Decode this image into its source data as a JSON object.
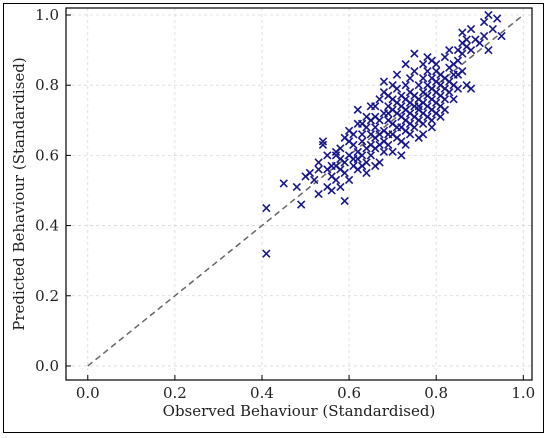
{
  "chart_data": {
    "type": "scatter",
    "title": "",
    "xlabel": "Observed Behaviour (Standardised)",
    "ylabel": "Predicted Behaviour (Standardised)",
    "xlim": [
      -0.05,
      1.02
    ],
    "ylim": [
      -0.04,
      1.02
    ],
    "xticks": [
      "0.0",
      "0.2",
      "0.4",
      "0.6",
      "0.8",
      "1.0"
    ],
    "yticks": [
      "0.0",
      "0.2",
      "0.4",
      "0.6",
      "0.8",
      "1.0"
    ],
    "xtick_values": [
      0.0,
      0.2,
      0.4,
      0.6,
      0.8,
      1.0
    ],
    "ytick_values": [
      0.0,
      0.2,
      0.4,
      0.6,
      0.8,
      1.0
    ],
    "grid": true,
    "marker": "x",
    "marker_color": "#17178a",
    "reference_line": {
      "x": [
        0,
        1
      ],
      "y": [
        0,
        1
      ],
      "style": "dashed",
      "color": "#666666"
    },
    "points": [
      [
        0.41,
        0.32
      ],
      [
        0.41,
        0.45
      ],
      [
        0.45,
        0.52
      ],
      [
        0.48,
        0.51
      ],
      [
        0.49,
        0.46
      ],
      [
        0.5,
        0.54
      ],
      [
        0.52,
        0.53
      ],
      [
        0.53,
        0.49
      ],
      [
        0.53,
        0.56
      ],
      [
        0.54,
        0.63
      ],
      [
        0.54,
        0.64
      ],
      [
        0.55,
        0.51
      ],
      [
        0.55,
        0.56
      ],
      [
        0.56,
        0.57
      ],
      [
        0.56,
        0.5
      ],
      [
        0.57,
        0.53
      ],
      [
        0.57,
        0.6
      ],
      [
        0.57,
        0.61
      ],
      [
        0.58,
        0.56
      ],
      [
        0.58,
        0.51
      ],
      [
        0.58,
        0.62
      ],
      [
        0.59,
        0.58
      ],
      [
        0.59,
        0.47
      ],
      [
        0.59,
        0.55
      ],
      [
        0.6,
        0.6
      ],
      [
        0.6,
        0.64
      ],
      [
        0.6,
        0.53
      ],
      [
        0.61,
        0.59
      ],
      [
        0.61,
        0.66
      ],
      [
        0.61,
        0.57
      ],
      [
        0.62,
        0.61
      ],
      [
        0.62,
        0.56
      ],
      [
        0.62,
        0.69
      ],
      [
        0.62,
        0.73
      ],
      [
        0.63,
        0.6
      ],
      [
        0.63,
        0.64
      ],
      [
        0.63,
        0.57
      ],
      [
        0.63,
        0.66
      ],
      [
        0.64,
        0.62
      ],
      [
        0.64,
        0.68
      ],
      [
        0.64,
        0.58
      ],
      [
        0.64,
        0.71
      ],
      [
        0.65,
        0.63
      ],
      [
        0.65,
        0.66
      ],
      [
        0.65,
        0.6
      ],
      [
        0.65,
        0.7
      ],
      [
        0.66,
        0.65
      ],
      [
        0.66,
        0.62
      ],
      [
        0.66,
        0.68
      ],
      [
        0.66,
        0.74
      ],
      [
        0.66,
        0.57
      ],
      [
        0.67,
        0.66
      ],
      [
        0.67,
        0.7
      ],
      [
        0.67,
        0.63
      ],
      [
        0.67,
        0.76
      ],
      [
        0.68,
        0.67
      ],
      [
        0.68,
        0.72
      ],
      [
        0.68,
        0.64
      ],
      [
        0.68,
        0.61
      ],
      [
        0.68,
        0.78
      ],
      [
        0.69,
        0.7
      ],
      [
        0.69,
        0.66
      ],
      [
        0.69,
        0.74
      ],
      [
        0.69,
        0.63
      ],
      [
        0.69,
        0.72
      ],
      [
        0.7,
        0.69
      ],
      [
        0.7,
        0.73
      ],
      [
        0.7,
        0.66
      ],
      [
        0.7,
        0.76
      ],
      [
        0.7,
        0.61
      ],
      [
        0.71,
        0.72
      ],
      [
        0.71,
        0.68
      ],
      [
        0.71,
        0.75
      ],
      [
        0.71,
        0.65
      ],
      [
        0.71,
        0.79
      ],
      [
        0.72,
        0.71
      ],
      [
        0.72,
        0.74
      ],
      [
        0.72,
        0.68
      ],
      [
        0.72,
        0.77
      ],
      [
        0.72,
        0.64
      ],
      [
        0.73,
        0.73
      ],
      [
        0.73,
        0.7
      ],
      [
        0.73,
        0.76
      ],
      [
        0.73,
        0.67
      ],
      [
        0.73,
        0.8
      ],
      [
        0.74,
        0.72
      ],
      [
        0.74,
        0.75
      ],
      [
        0.74,
        0.69
      ],
      [
        0.74,
        0.78
      ],
      [
        0.74,
        0.66
      ],
      [
        0.75,
        0.74
      ],
      [
        0.75,
        0.71
      ],
      [
        0.75,
        0.77
      ],
      [
        0.75,
        0.68
      ],
      [
        0.75,
        0.89
      ],
      [
        0.76,
        0.73
      ],
      [
        0.76,
        0.76
      ],
      [
        0.76,
        0.7
      ],
      [
        0.76,
        0.8
      ],
      [
        0.76,
        0.74
      ],
      [
        0.77,
        0.75
      ],
      [
        0.77,
        0.72
      ],
      [
        0.77,
        0.78
      ],
      [
        0.77,
        0.69
      ],
      [
        0.77,
        0.82
      ],
      [
        0.78,
        0.77
      ],
      [
        0.78,
        0.74
      ],
      [
        0.78,
        0.8
      ],
      [
        0.78,
        0.71
      ],
      [
        0.78,
        0.84
      ],
      [
        0.79,
        0.76
      ],
      [
        0.79,
        0.79
      ],
      [
        0.79,
        0.73
      ],
      [
        0.79,
        0.82
      ],
      [
        0.79,
        0.68
      ],
      [
        0.8,
        0.78
      ],
      [
        0.8,
        0.75
      ],
      [
        0.8,
        0.81
      ],
      [
        0.8,
        0.84
      ],
      [
        0.8,
        0.72
      ],
      [
        0.81,
        0.8
      ],
      [
        0.81,
        0.77
      ],
      [
        0.81,
        0.83
      ],
      [
        0.81,
        0.74
      ],
      [
        0.82,
        0.79
      ],
      [
        0.82,
        0.82
      ],
      [
        0.82,
        0.88
      ],
      [
        0.82,
        0.76
      ],
      [
        0.83,
        0.85
      ],
      [
        0.83,
        0.81
      ],
      [
        0.83,
        0.9
      ],
      [
        0.84,
        0.83
      ],
      [
        0.84,
        0.86
      ],
      [
        0.84,
        0.8
      ],
      [
        0.85,
        0.87
      ],
      [
        0.85,
        0.9
      ],
      [
        0.85,
        0.79
      ],
      [
        0.86,
        0.92
      ],
      [
        0.86,
        0.89
      ],
      [
        0.86,
        0.84
      ],
      [
        0.86,
        0.95
      ],
      [
        0.87,
        0.91
      ],
      [
        0.87,
        0.93
      ],
      [
        0.87,
        0.8
      ],
      [
        0.88,
        0.96
      ],
      [
        0.88,
        0.9
      ],
      [
        0.89,
        0.93
      ],
      [
        0.9,
        0.92
      ],
      [
        0.91,
        0.98
      ],
      [
        0.91,
        0.94
      ],
      [
        0.92,
        1.0
      ],
      [
        0.92,
        0.9
      ],
      [
        0.93,
        0.96
      ],
      [
        0.94,
        0.99
      ],
      [
        0.95,
        0.94
      ],
      [
        0.63,
        0.69
      ],
      [
        0.6,
        0.67
      ],
      [
        0.56,
        0.54
      ],
      [
        0.58,
        0.59
      ],
      [
        0.62,
        0.59
      ],
      [
        0.66,
        0.71
      ],
      [
        0.69,
        0.77
      ],
      [
        0.71,
        0.83
      ],
      [
        0.73,
        0.63
      ],
      [
        0.75,
        0.84
      ],
      [
        0.77,
        0.86
      ],
      [
        0.79,
        0.87
      ],
      [
        0.76,
        0.65
      ],
      [
        0.73,
        0.86
      ],
      [
        0.67,
        0.58
      ],
      [
        0.64,
        0.55
      ],
      [
        0.7,
        0.8
      ],
      [
        0.74,
        0.82
      ],
      [
        0.78,
        0.88
      ],
      [
        0.8,
        0.86
      ],
      [
        0.82,
        0.73
      ],
      [
        0.84,
        0.76
      ],
      [
        0.65,
        0.74
      ],
      [
        0.68,
        0.81
      ],
      [
        0.72,
        0.6
      ],
      [
        0.61,
        0.63
      ],
      [
        0.59,
        0.65
      ],
      [
        0.57,
        0.57
      ],
      [
        0.55,
        0.6
      ],
      [
        0.53,
        0.58
      ],
      [
        0.51,
        0.55
      ],
      [
        0.88,
        0.79
      ],
      [
        0.85,
        0.83
      ],
      [
        0.83,
        0.78
      ],
      [
        0.81,
        0.71
      ],
      [
        0.79,
        0.7
      ],
      [
        0.77,
        0.66
      ]
    ]
  }
}
